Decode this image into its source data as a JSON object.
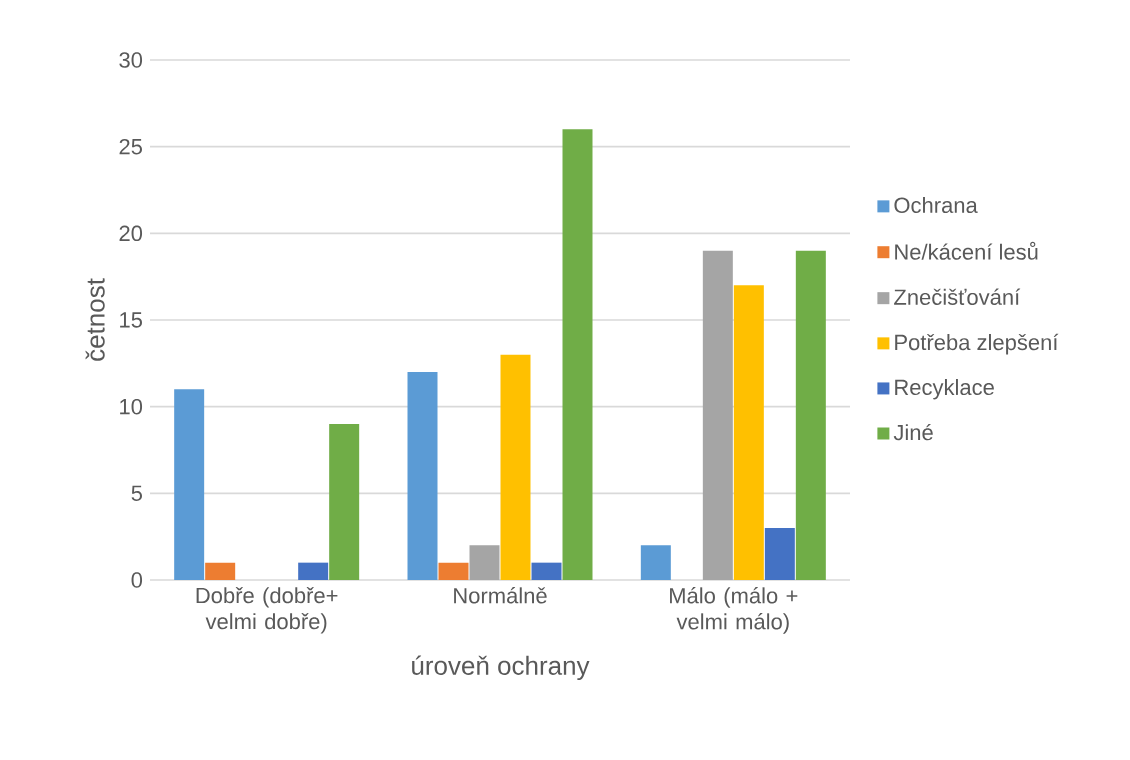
{
  "chart_data": {
    "type": "bar",
    "xlabel": "úroveň ochrany",
    "ylabel": "četnost",
    "categories": [
      "Dobře (dobře+ velmi dobře)",
      "Normálně",
      "Málo (málo + velmi málo)"
    ],
    "series": [
      {
        "name": "Ochrana",
        "color": "#5b9bd5",
        "values": [
          11,
          12,
          2
        ]
      },
      {
        "name": "Ne/kácení lesů",
        "color": "#ed7d31",
        "values": [
          1,
          1,
          0
        ]
      },
      {
        "name": "Znečišťování",
        "color": "#a5a5a5",
        "values": [
          0,
          2,
          19
        ]
      },
      {
        "name": "Potřeba zlepšení",
        "color": "#ffc000",
        "values": [
          0,
          13,
          17
        ]
      },
      {
        "name": "Recyklace",
        "color": "#4472c4",
        "values": [
          1,
          1,
          3
        ]
      },
      {
        "name": "Jiné",
        "color": "#70ad47",
        "values": [
          9,
          26,
          19
        ]
      }
    ],
    "ylim": [
      0,
      30
    ],
    "yticks": [
      0,
      5,
      10,
      15,
      20,
      25,
      30
    ],
    "grid": "y",
    "legend": "right"
  }
}
